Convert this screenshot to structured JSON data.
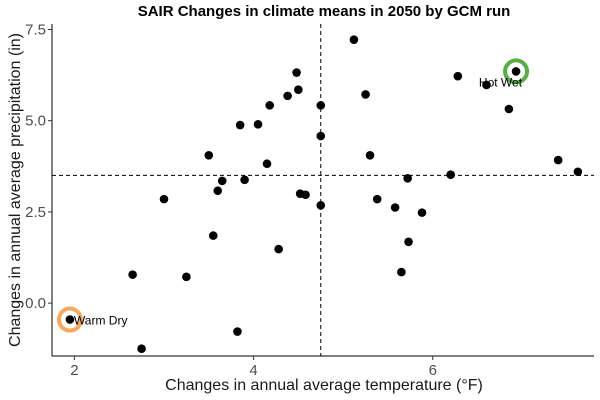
{
  "chart_data": {
    "type": "scatter",
    "title": "SAIR Changes in climate means in 2050 by GCM run",
    "xlabel": "Changes in annual average temperature (°F)",
    "ylabel": "Changes in annual average precipitation (in)",
    "xlim": [
      1.75,
      7.8
    ],
    "ylim": [
      -1.45,
      7.65
    ],
    "xticks": [
      2,
      4,
      6
    ],
    "xtick_labels": [
      "2",
      "4",
      "6"
    ],
    "yticks": [
      0.0,
      2.5,
      5.0,
      7.5
    ],
    "ytick_labels": [
      "0.0",
      "2.5",
      "5.0",
      "7.5"
    ],
    "grid": false,
    "legend": "none",
    "reference_lines": {
      "x": 4.75,
      "y": 3.5
    },
    "point_color": "#000000",
    "points": [
      {
        "x": 1.95,
        "y": -0.45
      },
      {
        "x": 2.65,
        "y": 0.78
      },
      {
        "x": 2.75,
        "y": -1.25
      },
      {
        "x": 3.0,
        "y": 2.85
      },
      {
        "x": 3.25,
        "y": 0.72
      },
      {
        "x": 3.5,
        "y": 4.05
      },
      {
        "x": 3.55,
        "y": 1.85
      },
      {
        "x": 3.6,
        "y": 3.08
      },
      {
        "x": 3.65,
        "y": 3.35
      },
      {
        "x": 3.82,
        "y": -0.78
      },
      {
        "x": 3.85,
        "y": 4.88
      },
      {
        "x": 3.9,
        "y": 3.38
      },
      {
        "x": 4.05,
        "y": 4.9
      },
      {
        "x": 4.15,
        "y": 3.82
      },
      {
        "x": 4.18,
        "y": 5.42
      },
      {
        "x": 4.28,
        "y": 1.48
      },
      {
        "x": 4.38,
        "y": 5.68
      },
      {
        "x": 4.48,
        "y": 6.32
      },
      {
        "x": 4.5,
        "y": 5.85
      },
      {
        "x": 4.52,
        "y": 3.0
      },
      {
        "x": 4.58,
        "y": 2.97
      },
      {
        "x": 4.75,
        "y": 5.42
      },
      {
        "x": 4.75,
        "y": 4.58
      },
      {
        "x": 4.75,
        "y": 2.68
      },
      {
        "x": 5.12,
        "y": 7.22
      },
      {
        "x": 5.25,
        "y": 5.72
      },
      {
        "x": 5.3,
        "y": 4.05
      },
      {
        "x": 5.38,
        "y": 2.85
      },
      {
        "x": 5.58,
        "y": 2.62
      },
      {
        "x": 5.65,
        "y": 0.85
      },
      {
        "x": 5.72,
        "y": 3.42
      },
      {
        "x": 5.73,
        "y": 1.68
      },
      {
        "x": 5.88,
        "y": 2.48
      },
      {
        "x": 6.2,
        "y": 3.52
      },
      {
        "x": 6.28,
        "y": 6.22
      },
      {
        "x": 6.6,
        "y": 5.98
      },
      {
        "x": 6.85,
        "y": 5.32
      },
      {
        "x": 6.93,
        "y": 6.35
      },
      {
        "x": 7.4,
        "y": 3.92
      },
      {
        "x": 7.62,
        "y": 3.6
      }
    ],
    "highlights": [
      {
        "label": "Warm Dry",
        "x": 1.95,
        "y": -0.45,
        "color": "#F7A85C"
      },
      {
        "label": "Hot Wet",
        "x": 6.93,
        "y": 6.35,
        "color": "#56AE44"
      }
    ]
  }
}
